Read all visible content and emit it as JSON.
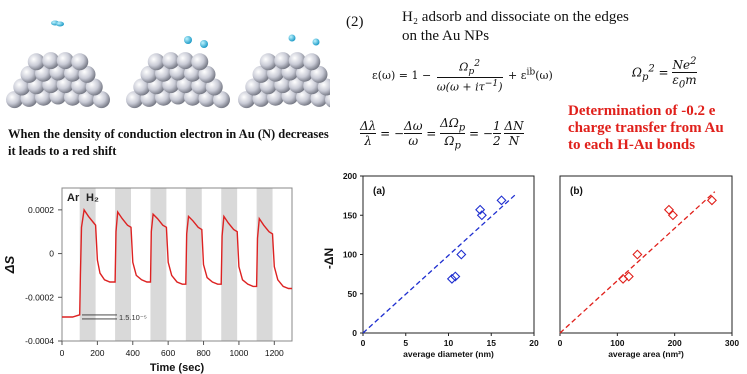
{
  "colors": {
    "red_text": "#e0201b",
    "line": "#d22",
    "blue": "#1f2fd0",
    "red_marker": "#e0201b",
    "gray_band": "#d9d9d9"
  },
  "caption": {
    "text": "When the density of conduction electron in Au (N) decreases it leads to a red shift"
  },
  "step": {
    "number": "(2)",
    "line1": "H₂ adsorb and dissociate on the edges",
    "line2": "on the Au NPs"
  },
  "equations": {
    "dielectric": "ε(ω) = 1 − Ωp² / (ω(ω + iτ⁻¹)) + εⁱᵇ(ω)",
    "plasma": "Ωp² = Ne² / (ε₀m)",
    "shift": "Δλ/λ = −Δω/ω = ΔΩp/Ωp = −(1/2)(ΔN/N)"
  },
  "highlight": {
    "lines": [
      "Determination of -0.2 e",
      "charge transfer from Au",
      "to each H-Au bonds"
    ]
  },
  "chart_data": [
    {
      "type": "line",
      "ylabel": "ΔS",
      "xlabel": "Time (sec)",
      "gas_labels": [
        "Ar",
        "H₂"
      ],
      "annotation": "1.5.10⁻⁵",
      "xlim": [
        0,
        1300
      ],
      "ylim": [
        -0.0004,
        0.0003
      ],
      "xticks": [
        0,
        200,
        400,
        600,
        800,
        1000,
        1200
      ],
      "yticks": [
        "0.0002",
        "0",
        "-0.0002",
        "-0.0004"
      ],
      "ytick_values": [
        0.0002,
        0,
        -0.0002,
        -0.0004
      ],
      "h2_bands": [
        [
          100,
          190
        ],
        [
          300,
          390
        ],
        [
          500,
          590
        ],
        [
          700,
          790
        ],
        [
          900,
          990
        ],
        [
          1100,
          1190
        ]
      ],
      "series": [
        {
          "x": [
            0,
            60,
            100,
            104,
            110,
            125,
            150,
            180,
            190,
            200,
            215,
            240,
            270,
            300,
            305,
            315,
            340,
            370,
            390,
            400,
            420,
            450,
            480,
            500,
            505,
            515,
            540,
            570,
            590,
            600,
            620,
            650,
            680,
            700,
            705,
            715,
            740,
            770,
            790,
            800,
            820,
            850,
            880,
            900,
            905,
            915,
            940,
            970,
            990,
            1000,
            1020,
            1050,
            1080,
            1100,
            1105,
            1115,
            1140,
            1170,
            1190,
            1200,
            1220,
            1250,
            1280,
            1300
          ],
          "y": [
            -0.00029,
            -0.00029,
            -0.00028,
            -0.0001,
            0.00012,
            0.0002,
            0.00017,
            0.00014,
            0.00013,
            -3e-05,
            -9e-05,
            -0.00012,
            -0.00013,
            -0.00013,
            0.0001,
            0.00019,
            0.00016,
            0.00013,
            0.00012,
            -4e-05,
            -0.0001,
            -0.00012,
            -0.00013,
            -0.00013,
            0.0001,
            0.00018,
            0.00016,
            0.00013,
            0.00012,
            -4e-05,
            -0.0001,
            -0.00013,
            -0.00014,
            -0.00014,
            9e-05,
            0.00017,
            0.00015,
            0.00012,
            0.00011,
            -5e-05,
            -0.00011,
            -0.00013,
            -0.00014,
            -0.00014,
            8e-05,
            0.00017,
            0.00014,
            0.00011,
            0.0001,
            -6e-05,
            -0.00012,
            -0.00014,
            -0.00015,
            -0.00015,
            7e-05,
            0.00016,
            0.00013,
            0.0001,
            9e-05,
            -6e-05,
            -0.00012,
            -0.00015,
            -0.00016,
            -0.00016
          ]
        }
      ]
    },
    {
      "type": "scatter",
      "panel_label": "(a)",
      "xlabel": "average diameter (nm)",
      "ylabel": "-ΔN",
      "xlim": [
        0,
        20
      ],
      "ylim": [
        0,
        200
      ],
      "xticks": [
        0,
        5,
        10,
        15,
        20
      ],
      "yticks": [
        0,
        50,
        100,
        150,
        200
      ],
      "points": {
        "x": [
          10.4,
          10.8,
          11.5,
          13.7,
          13.9,
          16.2
        ],
        "y": [
          69,
          72,
          100,
          157,
          150,
          169
        ]
      },
      "fit": {
        "x": [
          0,
          18
        ],
        "y": [
          0,
          178
        ]
      }
    },
    {
      "type": "scatter",
      "panel_label": "(b)",
      "xlabel": "average area (nm²)",
      "xlim": [
        0,
        300
      ],
      "ylim": [
        0,
        200
      ],
      "xticks": [
        0,
        100,
        200,
        300
      ],
      "points": {
        "x": [
          110,
          120,
          135,
          190,
          197,
          265
        ],
        "y": [
          69,
          72,
          100,
          157,
          150,
          169
        ]
      },
      "fit": {
        "x": [
          0,
          270
        ],
        "y": [
          0,
          180
        ]
      }
    }
  ]
}
